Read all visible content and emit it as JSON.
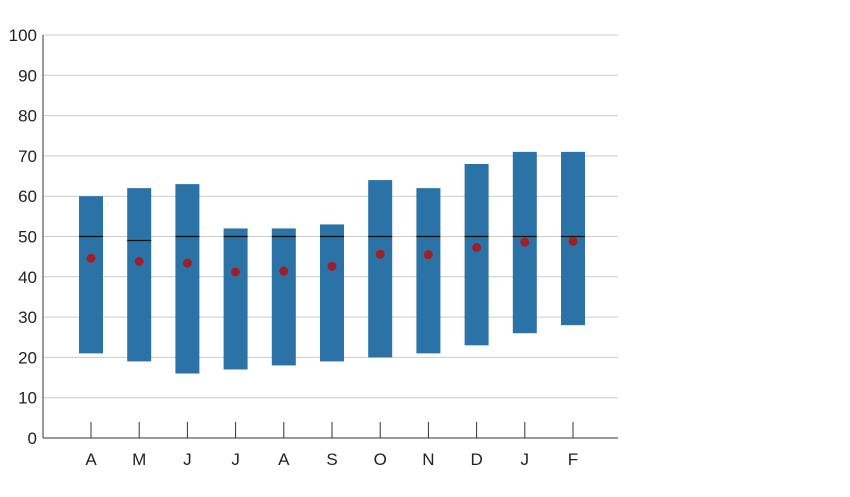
{
  "chart_data": {
    "type": "bar",
    "categories": [
      "A",
      "M",
      "J",
      "J",
      "A",
      "S",
      "O",
      "N",
      "D",
      "J",
      "F"
    ],
    "series": [
      {
        "values_low": [
          21,
          19,
          16,
          17,
          18,
          19,
          20,
          21,
          23,
          26,
          28
        ],
        "values_high": [
          60,
          62,
          63,
          52,
          52,
          53,
          64,
          62,
          68,
          71,
          71
        ]
      },
      {
        "values": [
          50,
          49,
          50,
          50,
          50,
          50,
          50,
          50,
          50,
          50,
          50
        ]
      },
      {
        "values": [
          44.6,
          43.8,
          43.4,
          41.2,
          41.4,
          42.6,
          45.6,
          45.5,
          47.3,
          48.6,
          48.8
        ]
      }
    ],
    "yticks": [
      0,
      10,
      20,
      30,
      40,
      50,
      60,
      70,
      80,
      90,
      100
    ],
    "ylim": [
      0,
      100
    ],
    "title": "",
    "xlabel": "",
    "ylabel": "",
    "grid": true,
    "legend": "none",
    "colors": {
      "bar": "#2b73a6",
      "marker": "#9e1f24",
      "median": "#111111",
      "grid": "#cccccc",
      "axis": "#333333"
    }
  }
}
